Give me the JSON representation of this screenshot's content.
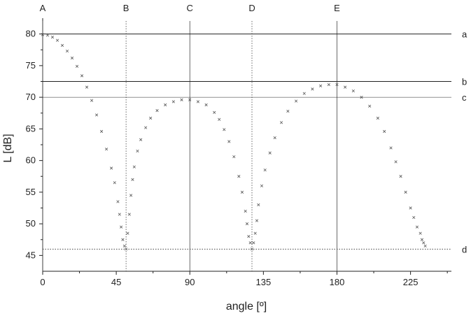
{
  "chart_data": {
    "type": "scatter",
    "title": "",
    "xlabel": "angle [º]",
    "ylabel": "L [dB]",
    "xlim": [
      0,
      250
    ],
    "ylim": [
      42.5,
      82.5
    ],
    "xticks": [
      0,
      45,
      90,
      135,
      180,
      225
    ],
    "yticks": [
      45,
      50,
      55,
      60,
      65,
      70,
      75,
      80
    ],
    "grid": false,
    "legend": "none",
    "marker": "x",
    "marker_color": "#555555",
    "vertical_lines": [
      {
        "label": "A",
        "x": 0,
        "style": "solid"
      },
      {
        "label": "B",
        "x": 51,
        "style": "dotted"
      },
      {
        "label": "C",
        "x": 90,
        "style": "solid"
      },
      {
        "label": "D",
        "x": 128,
        "style": "dotted"
      },
      {
        "label": "E",
        "x": 180,
        "style": "solid"
      }
    ],
    "horizontal_lines": [
      {
        "label": "a",
        "y": 80,
        "style": "solid"
      },
      {
        "label": "b",
        "y": 72.5,
        "style": "solid"
      },
      {
        "label": "c",
        "y": 70,
        "style": "solid"
      },
      {
        "label": "d",
        "y": 46,
        "style": "dotted"
      }
    ],
    "series": [
      {
        "x": [
          0,
          3,
          6,
          9,
          12,
          15,
          18,
          21,
          24,
          27,
          30,
          33,
          36,
          39,
          42,
          44,
          46,
          47,
          48,
          49,
          50,
          51,
          52,
          53,
          54,
          55,
          56,
          58,
          60,
          63,
          66,
          70,
          75,
          80,
          85,
          90,
          95,
          100,
          105,
          108,
          111,
          114,
          117,
          120,
          122,
          124,
          125,
          126,
          127,
          128,
          129,
          130,
          131,
          132,
          134,
          136,
          139,
          142,
          146,
          150,
          155,
          160,
          165,
          170,
          175,
          180,
          185,
          190,
          195,
          200,
          205,
          209,
          213,
          216,
          219,
          222,
          225,
          227,
          229,
          231,
          232,
          233,
          234
        ],
        "y": [
          79.9,
          79.8,
          79.5,
          79.0,
          78.2,
          77.3,
          76.2,
          74.9,
          73.4,
          71.6,
          69.5,
          67.2,
          64.6,
          61.8,
          58.8,
          56.5,
          53.5,
          51.5,
          49.5,
          47.5,
          46.5,
          46.0,
          48.5,
          51.5,
          54.5,
          57.0,
          59.0,
          61.5,
          63.3,
          65.2,
          66.7,
          67.9,
          68.8,
          69.3,
          69.6,
          69.6,
          69.3,
          68.8,
          67.6,
          66.5,
          64.9,
          63.0,
          60.6,
          57.5,
          55.0,
          52.0,
          50.0,
          48.0,
          47.0,
          46.0,
          47.0,
          48.5,
          50.5,
          53.0,
          56.0,
          58.5,
          61.2,
          63.6,
          66.0,
          67.8,
          69.4,
          70.6,
          71.3,
          71.8,
          72.0,
          72.0,
          71.6,
          71.0,
          70.0,
          68.6,
          66.7,
          64.6,
          62.0,
          59.8,
          57.5,
          55.0,
          52.5,
          51.0,
          49.5,
          48.5,
          47.5,
          47.0,
          46.5
        ]
      }
    ]
  }
}
